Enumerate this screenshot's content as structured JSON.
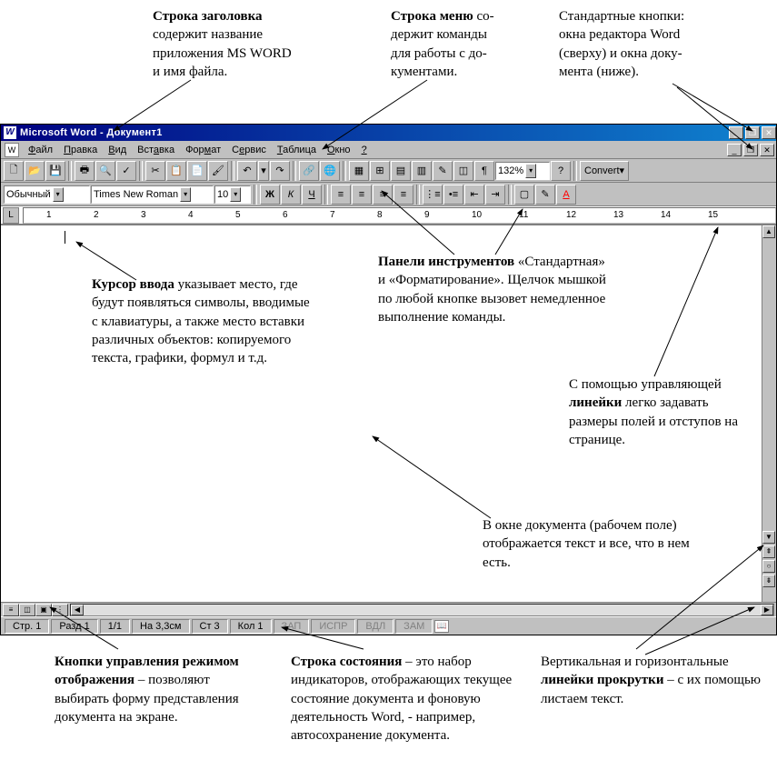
{
  "annotations": {
    "titlebar_label": "Строка заголовка содержит название приложения MS WORD и имя файла.",
    "titlebar_bold": "Строка заголовка",
    "menubar_label": "Строка меню содержит команды для работы с документами.",
    "menubar_bold": "Строка меню",
    "stdbtns_label": "Стандартные кнопки: окна редактора Word (сверху) и окна документа (ниже).",
    "cursor_bold": "Курсор ввода",
    "cursor_label": " указывает место, где будут появляться символы, вводимые с клавиатуры, а также место вставки различных объектов: копируемого текста, графики, формул и т.д.",
    "toolbars_bold": "Панели инструментов",
    "toolbars_label": " «Стандартная» и «Форматирование». Щелчок мышкой по любой кнопке вызовет немедленное выполнение команды.",
    "ruler_label1": "С помощью управляющей ",
    "ruler_bold": "линейки",
    "ruler_label2": " легко задавать размеры полей и отступов на странице.",
    "docarea_label": "В окне документа (рабочем поле) отображается текст и все, что в нем есть.",
    "viewbtns_bold": "Кнопки управления режимом отображения",
    "viewbtns_label": " – позволяют выбирать форму представления документа на экране.",
    "status_bold": "Строка состояния",
    "status_label": " – это набор индикаторов, отображающих текущее состояние документа и фоновую деятельность Word, - например, автосохранение документа.",
    "scroll_label1": "Вертикальная и горизонтальные ",
    "scroll_bold": "линейки прокрутки",
    "scroll_label2": " – с их помощью листаем текст."
  },
  "window": {
    "title": "Microsoft Word - Документ1"
  },
  "menu": [
    "Файл",
    "Правка",
    "Вид",
    "Вставка",
    "Формат",
    "Сервис",
    "Таблица",
    "Окно",
    "?"
  ],
  "toolbar1": {
    "zoom": "132%",
    "convert": "Convert"
  },
  "toolbar2": {
    "style": "Обычный",
    "font": "Times New Roman",
    "size": "10"
  },
  "ruler_numbers": [
    "1",
    "2",
    "3",
    "4",
    "5",
    "6",
    "7",
    "8",
    "9",
    "10",
    "11",
    "12",
    "13",
    "14",
    "15"
  ],
  "status": {
    "page": "Стр. 1",
    "section": "Разд 1",
    "pages": "1/1",
    "at": "На 3,3см",
    "line": "Ст 3",
    "col": "Кол 1",
    "rec": "ЗАП",
    "trk": "ИСПР",
    "ext": "ВДЛ",
    "ovr": "ЗАМ"
  },
  "colors": {
    "titlebar_start": "#000080",
    "titlebar_end": "#1084d0",
    "ui_gray": "#c0c0c0"
  }
}
